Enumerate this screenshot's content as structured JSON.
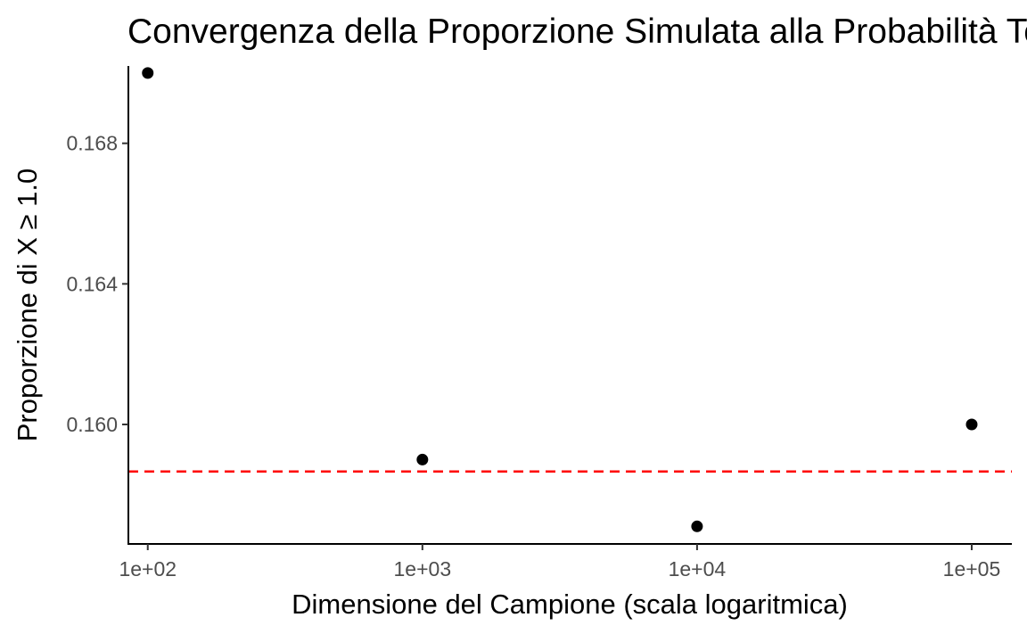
{
  "chart_data": {
    "type": "scatter",
    "title": "Convergenza della Proporzione Simulata alla Probabilità Teorica",
    "xlabel": "Dimensione del Campione (scala logaritmica)",
    "ylabel": "Proporzione di X ≥ 1.0",
    "x_scale": "log10",
    "x": [
      100,
      1000,
      10000,
      100000
    ],
    "y": [
      0.17,
      0.159,
      0.1571,
      0.16
    ],
    "xlim": [
      85,
      140000
    ],
    "ylim": [
      0.1566,
      0.1702
    ],
    "x_ticks": [
      100,
      1000,
      10000,
      100000
    ],
    "x_tick_labels": [
      "1e+02",
      "1e+03",
      "1e+04",
      "1e+05"
    ],
    "y_ticks": [
      0.16,
      0.164,
      0.168
    ],
    "y_tick_labels": [
      "0.160",
      "0.164",
      "0.168"
    ],
    "reference_line": {
      "y": 0.15866,
      "style": "dashed",
      "color": "#ff0000"
    },
    "point_color": "#000000",
    "grid": false
  }
}
